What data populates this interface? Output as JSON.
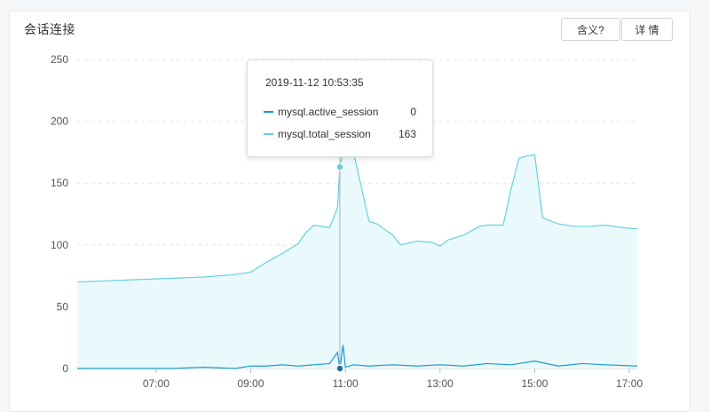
{
  "panel": {
    "title": "会话连接",
    "meaning_button": "含义?",
    "detail_button": "详 情"
  },
  "tooltip": {
    "timestamp": "2019-11-12 10:53:35",
    "rows": [
      {
        "name": "mysql.active_session",
        "value": "0",
        "color": "#1a9ad6"
      },
      {
        "name": "mysql.total_session",
        "value": "163",
        "color": "#66d0e3"
      }
    ]
  },
  "chart_data": {
    "type": "area",
    "title": "",
    "xlabel": "",
    "ylabel": "",
    "ylim": [
      0,
      250
    ],
    "y_ticks": [
      0,
      50,
      100,
      150,
      200,
      250
    ],
    "x_ticks": [
      "07:00",
      "09:00",
      "11:00",
      "13:00",
      "15:00",
      "17:00"
    ],
    "grid": "horizontal dashed",
    "cursor_time": "10:53",
    "series": [
      {
        "name": "mysql.total_session",
        "color": "#66d0e3",
        "fill": "#eaf9fb",
        "x": [
          "05:20",
          "06:00",
          "06:40",
          "07:20",
          "08:00",
          "08:20",
          "08:40",
          "09:00",
          "09:20",
          "09:40",
          "10:00",
          "10:10",
          "10:20",
          "10:40",
          "10:50",
          "10:53",
          "10:57",
          "11:10",
          "11:30",
          "11:40",
          "12:00",
          "12:10",
          "12:30",
          "12:50",
          "13:00",
          "13:10",
          "13:30",
          "13:50",
          "14:00",
          "14:20",
          "14:30",
          "14:40",
          "14:50",
          "15:00",
          "15:10",
          "15:30",
          "15:50",
          "16:10",
          "16:30",
          "16:50",
          "17:10"
        ],
        "values": [
          70,
          71,
          72,
          73,
          74,
          75,
          76,
          78,
          86,
          93,
          101,
          110,
          116,
          114,
          130,
          163,
          175,
          176,
          119,
          117,
          108,
          100,
          103,
          102,
          99,
          104,
          108,
          115,
          116,
          116,
          145,
          170,
          172,
          173,
          122,
          117,
          115,
          115,
          116,
          114,
          113
        ]
      },
      {
        "name": "mysql.active_session",
        "color": "#1a9ad6",
        "x": [
          "05:20",
          "06:00",
          "06:40",
          "07:20",
          "08:00",
          "08:40",
          "09:00",
          "09:20",
          "09:40",
          "10:00",
          "10:20",
          "10:40",
          "10:50",
          "10:53",
          "10:57",
          "11:00",
          "11:10",
          "11:30",
          "12:00",
          "12:30",
          "13:00",
          "13:30",
          "14:00",
          "14:30",
          "15:00",
          "15:30",
          "16:00",
          "16:30",
          "17:10"
        ],
        "values": [
          0,
          0,
          0,
          0,
          1,
          0,
          2,
          2,
          3,
          2,
          3,
          4,
          13,
          0,
          19,
          1,
          3,
          2,
          3,
          2,
          3,
          2,
          4,
          3,
          6,
          2,
          4,
          3,
          2
        ]
      }
    ]
  }
}
